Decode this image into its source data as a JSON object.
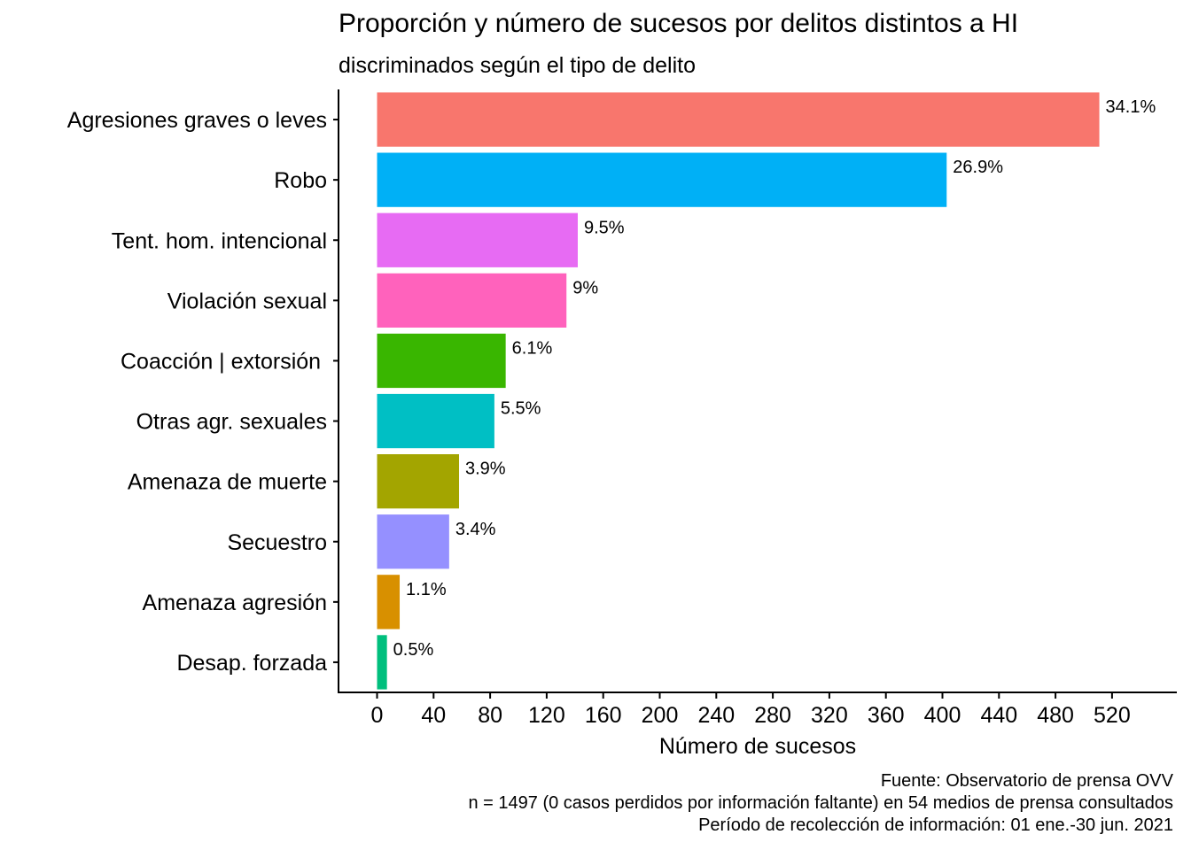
{
  "chart_data": {
    "type": "bar",
    "orientation": "horizontal",
    "title": "Proporción y número de sucesos por delitos distintos a HI",
    "subtitle": "discriminados según el tipo de delito",
    "xlabel": "Número de sucesos",
    "ylabel": "",
    "categories": [
      "Agresiones graves o leves",
      "Robo",
      "Tent. hom. intencional",
      "Violación sexual",
      "Coacción | extorsión ",
      "Otras agr. sexuales",
      "Amenaza de muerte",
      "Secuestro",
      "Amenaza agresión",
      "Desap. forzada"
    ],
    "values": [
      511,
      403,
      142,
      134,
      91,
      83,
      58,
      51,
      16,
      7
    ],
    "data_labels": [
      "34.1%",
      "26.9%",
      "9.5%",
      "9%",
      "6.1%",
      "5.5%",
      "3.9%",
      "3.4%",
      "1.1%",
      "0.5%"
    ],
    "colors": [
      "#F8766D",
      "#00B0F6",
      "#E76BF3",
      "#FF62BC",
      "#39B600",
      "#00BFC4",
      "#A3A500",
      "#9590FF",
      "#D89000",
      "#00BF7D"
    ],
    "xticks": [
      0,
      40,
      80,
      120,
      160,
      200,
      240,
      280,
      320,
      360,
      400,
      440,
      480,
      520
    ],
    "xticklabels": [
      "0",
      "40",
      "80",
      "120",
      "160",
      "200",
      "240",
      "280",
      "320",
      "360",
      "400",
      "440",
      "480",
      "520"
    ],
    "xlim": [
      -27,
      567
    ],
    "grid": false,
    "legend": "none"
  },
  "caption": {
    "line1": "Fuente: Observatorio de prensa OVV ",
    "line2": "n = 1497 (0 casos perdidos por información faltante) en 54 medios de prensa consultados",
    "line3": "Período de recolección de información: 01 ene.-30 jun. 2021"
  }
}
